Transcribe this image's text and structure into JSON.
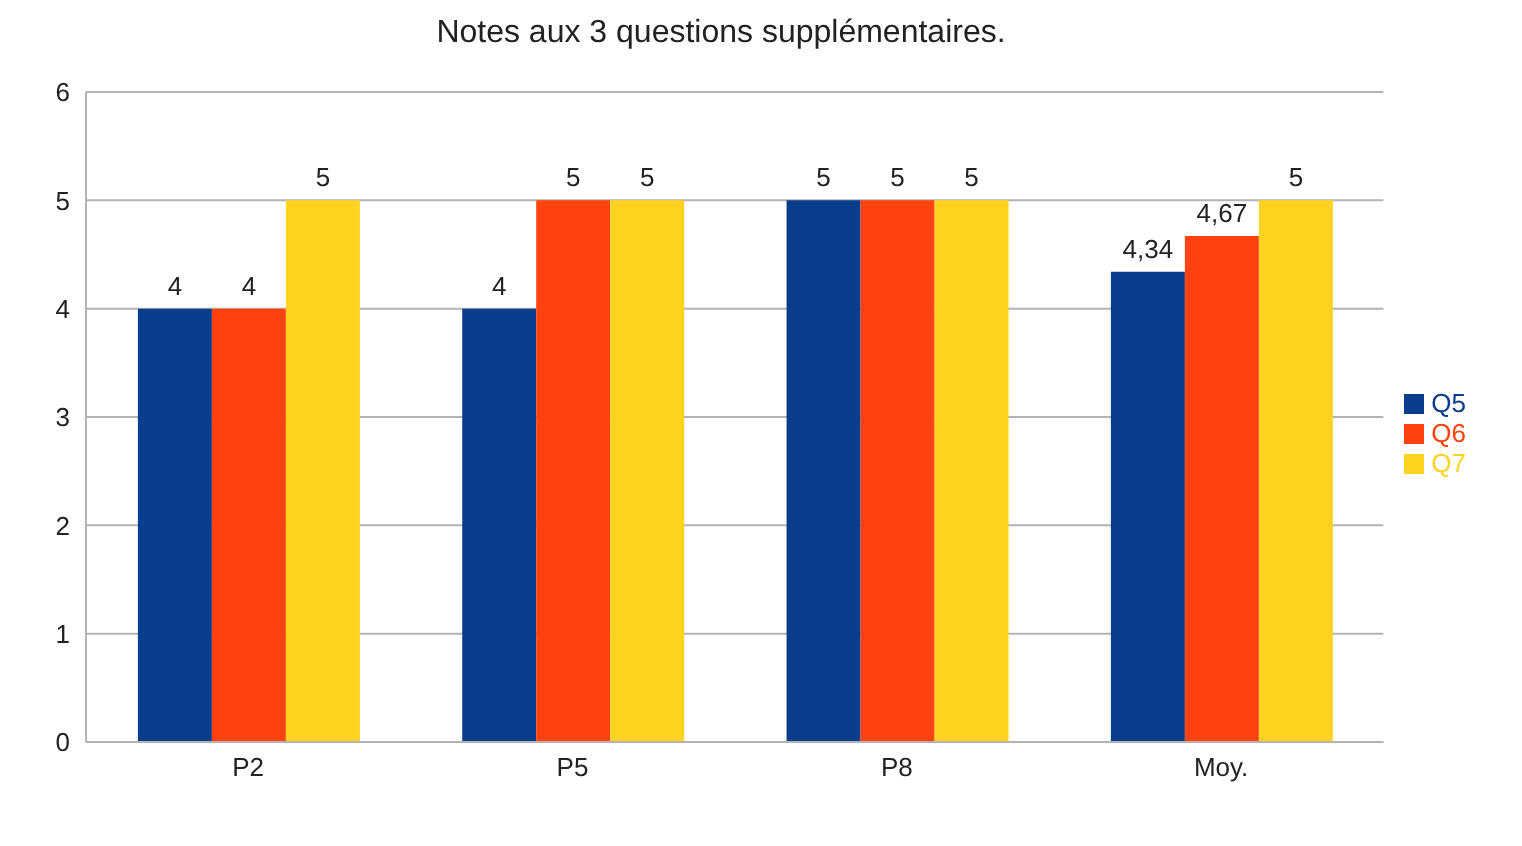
{
  "chart_data": {
    "type": "bar",
    "title": "Notes aux 3 questions supplémentaires.",
    "categories": [
      "P2",
      "P5",
      "P8",
      "Moy."
    ],
    "series": [
      {
        "name": "Q5",
        "color": "#0a3d8c",
        "values": [
          4,
          4,
          5,
          4.34
        ],
        "value_labels": [
          "4",
          "4",
          "5",
          "4,34"
        ]
      },
      {
        "name": "Q6",
        "color": "#ff420e",
        "values": [
          4,
          5,
          5,
          4.67
        ],
        "value_labels": [
          "4",
          "5",
          "5",
          "4,67"
        ]
      },
      {
        "name": "Q7",
        "color": "#ffd320",
        "values": [
          5,
          5,
          5,
          5
        ],
        "value_labels": [
          "5",
          "5",
          "5",
          "5"
        ]
      }
    ],
    "ylim": [
      0,
      6
    ],
    "yticks": [
      0,
      1,
      2,
      3,
      4,
      5,
      6
    ],
    "grid": "y",
    "legend": "right"
  }
}
